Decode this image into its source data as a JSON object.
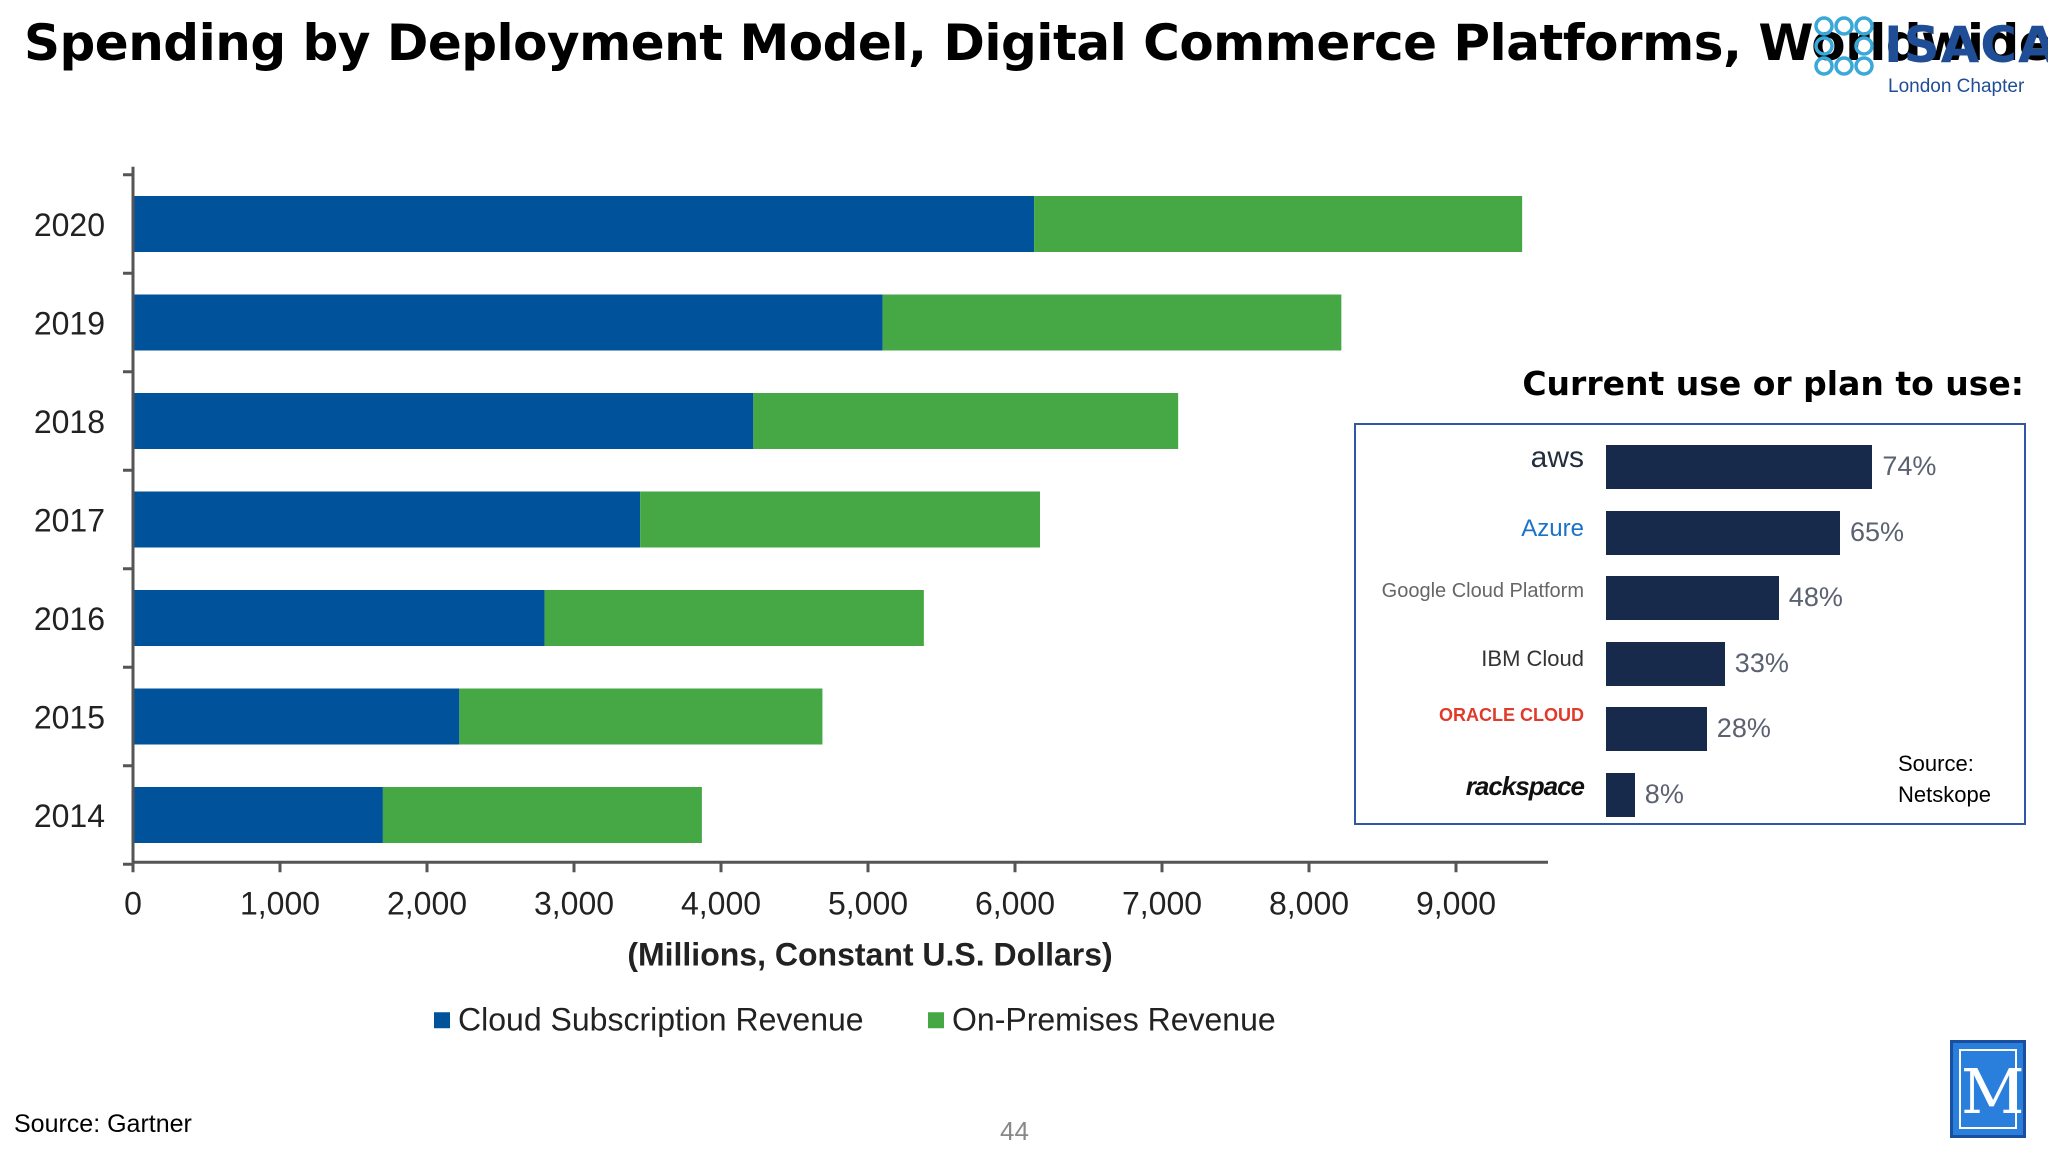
{
  "slide": {
    "title": "Spending by Deployment Model, Digital Commerce Platforms, Worldwide",
    "page_number": "44",
    "source_main": "Source: Gartner",
    "logo": {
      "name": "ISACA",
      "subtitle": "London Chapter",
      "brand_color": "#1f4e96"
    },
    "corner_logo_letter": "M"
  },
  "chart_data": [
    {
      "type": "bar",
      "orientation": "horizontal",
      "stacked": true,
      "categories": [
        "2020",
        "2019",
        "2018",
        "2017",
        "2016",
        "2015",
        "2014"
      ],
      "series": [
        {
          "name": "Cloud Subscription Revenue",
          "color": "#00529b",
          "values": [
            6130,
            5100,
            4220,
            3450,
            2800,
            2220,
            1700
          ]
        },
        {
          "name": "On-Premises Revenue",
          "color": "#46a845",
          "values": [
            3320,
            3120,
            2890,
            2720,
            2580,
            2470,
            2170
          ]
        }
      ],
      "xlabel": "(Millions, Constant U.S. Dollars)",
      "xlim": [
        0,
        9600
      ],
      "xticks": [
        0,
        1000,
        2000,
        3000,
        4000,
        5000,
        6000,
        7000,
        8000,
        9000
      ],
      "xtick_labels": [
        "0",
        "1,000",
        "2,000",
        "3,000",
        "4,000",
        "5,000",
        "6,000",
        "7,000",
        "8,000",
        "9,000"
      ],
      "legend_position": "bottom",
      "grid": false
    },
    {
      "type": "bar",
      "orientation": "horizontal",
      "title": "Current use or plan to use:",
      "categories": [
        "aws",
        "Azure",
        "Google Cloud Platform",
        "IBM Cloud",
        "ORACLE CLOUD",
        "rackspace"
      ],
      "values": [
        74,
        65,
        48,
        33,
        28,
        8
      ],
      "value_labels": [
        "74%",
        "65%",
        "48%",
        "33%",
        "28%",
        "8%"
      ],
      "bar_color": "#172a4c",
      "source": "Source:\nNetskope"
    }
  ]
}
